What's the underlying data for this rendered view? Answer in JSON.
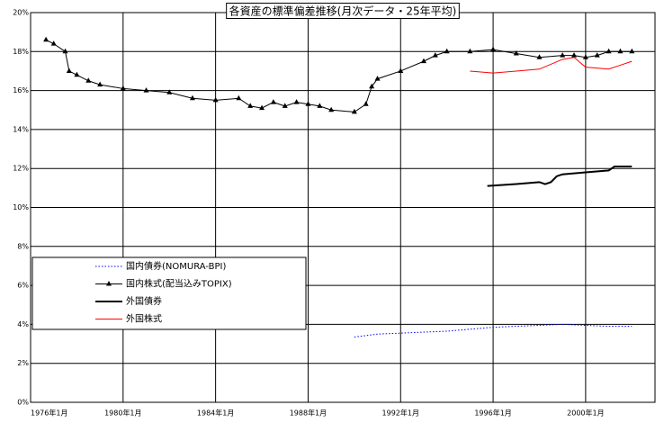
{
  "chart_data": {
    "type": "line",
    "title": "各資産の標準偏差推移(月次データ・25年平均)",
    "xlim": [
      "1976年1月",
      "2003年1月"
    ],
    "xticks": [
      "1976年1月",
      "1980年1月",
      "1984年1月",
      "1988年1月",
      "1992年1月",
      "1996年1月",
      "2000年1月"
    ],
    "ylim": [
      0,
      20
    ],
    "yticks": [
      {
        "value": 0,
        "label": "0%"
      },
      {
        "value": 2,
        "label": "2%"
      },
      {
        "value": 4,
        "label": "4%"
      },
      {
        "value": 6,
        "label": "6%"
      },
      {
        "value": 8,
        "label": "8%"
      },
      {
        "value": 10,
        "label": "10%"
      },
      {
        "value": 12,
        "label": "12%"
      },
      {
        "value": 14,
        "label": "14%"
      },
      {
        "value": 16,
        "label": "16%"
      },
      {
        "value": 18,
        "label": "18%"
      },
      {
        "value": 20,
        "label": "20%"
      }
    ],
    "grid": true,
    "legend": "lower left",
    "series": [
      {
        "name": "国内債券(NOMURA-BPI)",
        "color": "#0000ff",
        "dash": true,
        "x": [
          "1990年1月",
          "1991年1月",
          "1992年1月",
          "1993年1月",
          "1994年1月",
          "1995年1月",
          "1996年1月",
          "1997年1月",
          "1998年1月",
          "1999年1月",
          "2000年1月",
          "2001年1月",
          "2002年1月"
        ],
        "values": [
          3.35,
          3.5,
          3.55,
          3.6,
          3.65,
          3.75,
          3.85,
          3.9,
          3.95,
          4.0,
          3.95,
          3.9,
          3.9
        ]
      },
      {
        "name": "国内株式(配当込みTOPIX)",
        "color": "#000000",
        "marker": "triangle",
        "x": [
          "1976年9月",
          "1977年1月",
          "1977年7月",
          "1977年9月",
          "1978年1月",
          "1978年7月",
          "1979年1月",
          "1980年1月",
          "1981年1月",
          "1982年1月",
          "1983年1月",
          "1984年1月",
          "1985年1月",
          "1985年7月",
          "1986年1月",
          "1986年7月",
          "1987年1月",
          "1987年7月",
          "1988年1月",
          "1988年7月",
          "1989年1月",
          "1990年1月",
          "1990年7月",
          "1990年10月",
          "1991年1月",
          "1992年1月",
          "1993年1月",
          "1993年7月",
          "1994年1月",
          "1995年1月",
          "1996年1月",
          "1997年1月",
          "1998年1月",
          "1999年1月",
          "1999年7月",
          "2000年1月",
          "2000年7月",
          "2001年1月",
          "2001年7月",
          "2002年1月"
        ],
        "values": [
          18.6,
          18.4,
          18.0,
          17.0,
          16.8,
          16.5,
          16.3,
          16.1,
          16.0,
          15.9,
          15.6,
          15.5,
          15.6,
          15.2,
          15.1,
          15.4,
          15.2,
          15.4,
          15.3,
          15.2,
          15.0,
          14.9,
          15.3,
          16.2,
          16.6,
          17.0,
          17.5,
          17.8,
          18.0,
          18.0,
          18.1,
          17.9,
          17.7,
          17.8,
          17.8,
          17.7,
          17.8,
          18.0,
          18.0,
          18.0
        ]
      },
      {
        "name": "外国債券",
        "color": "#000000",
        "width": 2,
        "x": [
          "1995年10月",
          "1997年1月",
          "1998年1月",
          "1998年4月",
          "1998年7月",
          "1998年10月",
          "1999年1月",
          "2000年1月",
          "2001年1月",
          "2001年4月",
          "2002年1月"
        ],
        "values": [
          11.1,
          11.2,
          11.3,
          11.2,
          11.3,
          11.6,
          11.7,
          11.8,
          11.9,
          12.1,
          12.1
        ]
      },
      {
        "name": "外国株式",
        "color": "#ff0000",
        "x": [
          "1995年1月",
          "1996年1月",
          "1997年1月",
          "1998年1月",
          "1999年1月",
          "1999年7月",
          "2000年1月",
          "2001年1月",
          "2001年7月",
          "2002年1月"
        ],
        "values": [
          17.0,
          16.9,
          17.0,
          17.1,
          17.6,
          17.7,
          17.2,
          17.1,
          17.3,
          17.5
        ]
      }
    ]
  }
}
